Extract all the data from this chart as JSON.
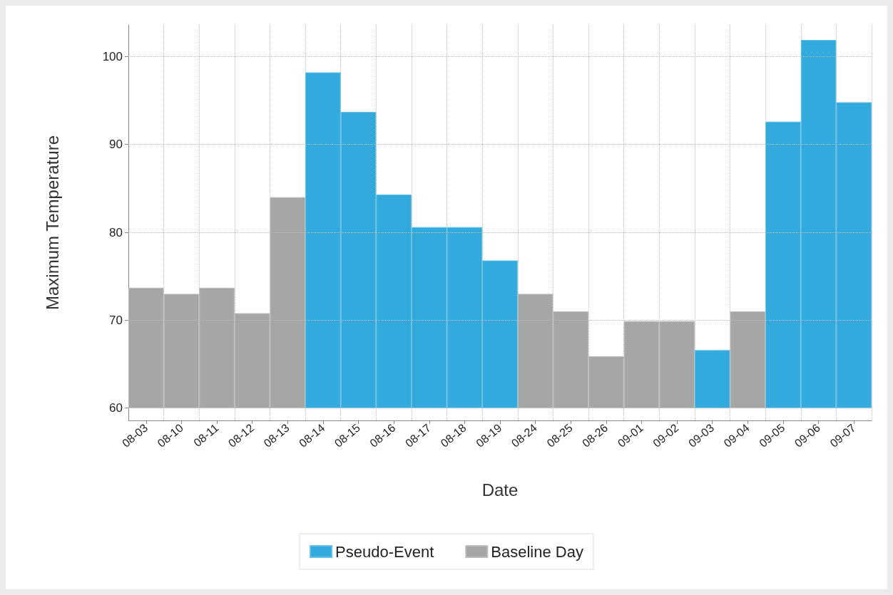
{
  "chart_data": {
    "type": "bar",
    "xlabel": "Date",
    "ylabel": "Maximum Temperature",
    "categories": [
      "08-03",
      "08-10",
      "08-11",
      "08-12",
      "08-13",
      "08-14",
      "08-15",
      "08-16",
      "08-17",
      "08-18",
      "08-19",
      "08-24",
      "08-25",
      "08-26",
      "09-01",
      "09-02",
      "09-03",
      "09-04",
      "09-05",
      "09-06",
      "09-07"
    ],
    "series": [
      {
        "name": "Pseudo-Event",
        "color": "#33aadd",
        "base": [
          null,
          null,
          null,
          null,
          null,
          60,
          60,
          60,
          60,
          60,
          60,
          null,
          null,
          null,
          null,
          null,
          60,
          null,
          60,
          60,
          60
        ],
        "values": [
          null,
          null,
          null,
          null,
          null,
          38.2,
          33.7,
          24.3,
          20.6,
          20.6,
          16.8,
          null,
          null,
          null,
          null,
          null,
          6.6,
          null,
          32.6,
          41.9,
          34.8
        ]
      },
      {
        "name": "Baseline Day",
        "color": "#a6a6a6",
        "base": [
          60,
          60,
          60,
          60,
          60,
          null,
          null,
          null,
          null,
          null,
          null,
          60,
          60,
          60,
          60,
          60,
          null,
          60,
          null,
          null,
          null
        ],
        "values": [
          13.7,
          13.0,
          13.7,
          10.8,
          24.0,
          null,
          null,
          null,
          null,
          null,
          null,
          13.0,
          11.0,
          5.9,
          9.9,
          9.9,
          null,
          11.0,
          null,
          null,
          null
        ]
      }
    ],
    "ylim": [
      58.6,
      103.6
    ],
    "yticks": [
      60,
      70,
      80,
      90,
      100
    ],
    "grid": true,
    "legend": "bottom"
  }
}
